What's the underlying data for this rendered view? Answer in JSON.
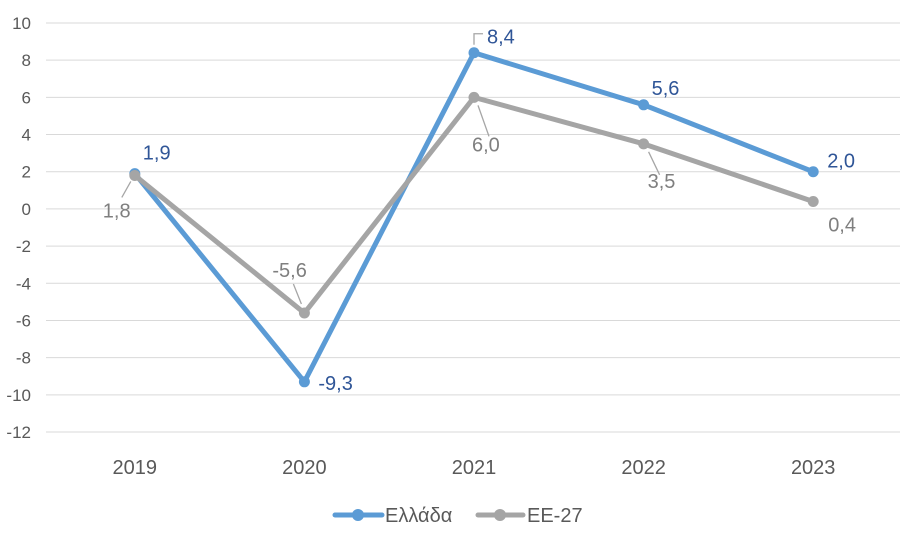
{
  "chart_data": {
    "type": "line",
    "title": "",
    "xlabel": "",
    "ylabel": "",
    "categories": [
      "2019",
      "2020",
      "2021",
      "2022",
      "2023"
    ],
    "series": [
      {
        "name": "Ελλάδα",
        "values": [
          1.9,
          -9.3,
          8.4,
          5.6,
          2.0
        ],
        "point_labels": [
          "1,9",
          "-9,3",
          "8,4",
          "5,6",
          "2,0"
        ],
        "color": "#5B9BD5",
        "label_color": "#2F5597"
      },
      {
        "name": "EE-27",
        "values": [
          1.8,
          -5.6,
          6.0,
          3.5,
          0.4
        ],
        "point_labels": [
          "1,8",
          "-5,6",
          "6,0",
          "3,5",
          "0,4"
        ],
        "color": "#A5A5A5",
        "label_color": "#7F7F7F"
      }
    ],
    "ylim": [
      -12,
      10
    ],
    "ytick_step": 2,
    "ytick_labels": [
      "10",
      "8",
      "6",
      "4",
      "2",
      "0",
      "-2",
      "-4",
      "-6",
      "-8",
      "-10",
      "-12"
    ],
    "grid": true,
    "gridline_color": "#D9D9D9",
    "leader_line_color": "#A6A6A6",
    "axis_text_color": "#595959",
    "legend_position": "bottom",
    "legend_text_color": "#595959",
    "background": "#FFFFFF"
  }
}
